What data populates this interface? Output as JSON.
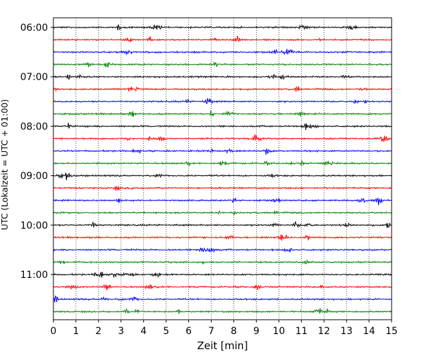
{
  "chart_data": {
    "type": "line",
    "title": "",
    "xlabel": "Zeit  [min]",
    "ylabel": "UTC (Lokalzeit = UTC + 01:00)",
    "xlim": [
      0,
      15
    ],
    "xticks": [
      0,
      1,
      2,
      3,
      4,
      5,
      6,
      7,
      8,
      9,
      10,
      11,
      12,
      13,
      14,
      15
    ],
    "y_tick_labels": [
      "06:00",
      "07:00",
      "08:00",
      "09:00",
      "10:00",
      "11:00"
    ],
    "row_start": "06:00",
    "row_interval_min": 15,
    "row_count": 24,
    "series_colors": [
      "#000000",
      "#ff0000",
      "#0000ff",
      "#008000"
    ],
    "grid": "vertical dotted at each minute",
    "legend": "none"
  }
}
